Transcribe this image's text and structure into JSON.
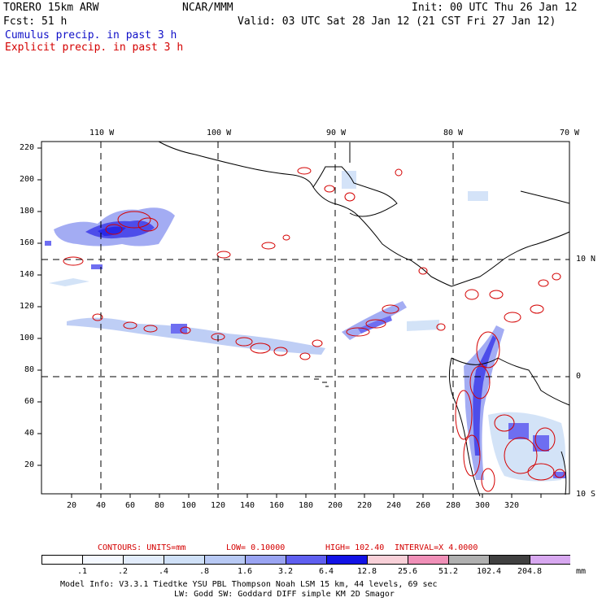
{
  "header": {
    "model": "TORERO  15km ARW",
    "org": "NCAR/MMM",
    "init": "Init: 00 UTC Thu 26 Jan 12",
    "fcst": "Fcst:   51 h",
    "valid": "Valid: 03 UTC Sat 28 Jan 12 (21 CST Fri 27 Jan 12)",
    "cumulus": "Cumulus precip. in past 3 h",
    "explicit": "Explicit precip. in past 3 h"
  },
  "map": {
    "lon_labels": [
      "110 W",
      "100 W",
      "90 W",
      "80 W",
      "70 W"
    ],
    "lat_labels": [
      "10 N",
      "0",
      "10 S"
    ],
    "x_ticks": [
      "20",
      "40",
      "60",
      "80",
      "100",
      "120",
      "140",
      "160",
      "180",
      "200",
      "220",
      "240",
      "260",
      "280",
      "300",
      "320"
    ],
    "y_ticks": [
      "220",
      "200",
      "180",
      "160",
      "140",
      "120",
      "100",
      "80",
      "60",
      "40",
      "20"
    ],
    "land_color": "#000000",
    "grid_color": "#000000"
  },
  "contours": {
    "units_label": "CONTOURS:  UNITS=mm",
    "low": "LOW= 0.10000",
    "high": "HIGH=  102.40",
    "interval": "INTERVAL=X  4.0000",
    "color": "#d40000"
  },
  "colorbar": {
    "unit": "mm",
    "labels": [
      ".1",
      ".2",
      ".4",
      ".8",
      "1.6",
      "3.2",
      "6.4",
      "12.8",
      "25.6",
      "51.2",
      "102.4",
      "204.8"
    ],
    "colors": [
      "#ffffff",
      "#f4f8ff",
      "#e2ecfb",
      "#cfe0f7",
      "#b8c9f4",
      "#9aa4f2",
      "#5f5ff0",
      "#1212e6",
      "#f8d0d8",
      "#f090b8",
      "#b0b0b0",
      "#404040",
      "#d8a8f0"
    ]
  },
  "footer": {
    "line1": "Model Info: V3.3.1    Tiedtke YSU PBL  Thompson    Noah LSM  15 km,   44 levels,   69 sec",
    "line2": "LW: Godd SW: Goddard DIFF  simple KM  2D Smagor"
  }
}
